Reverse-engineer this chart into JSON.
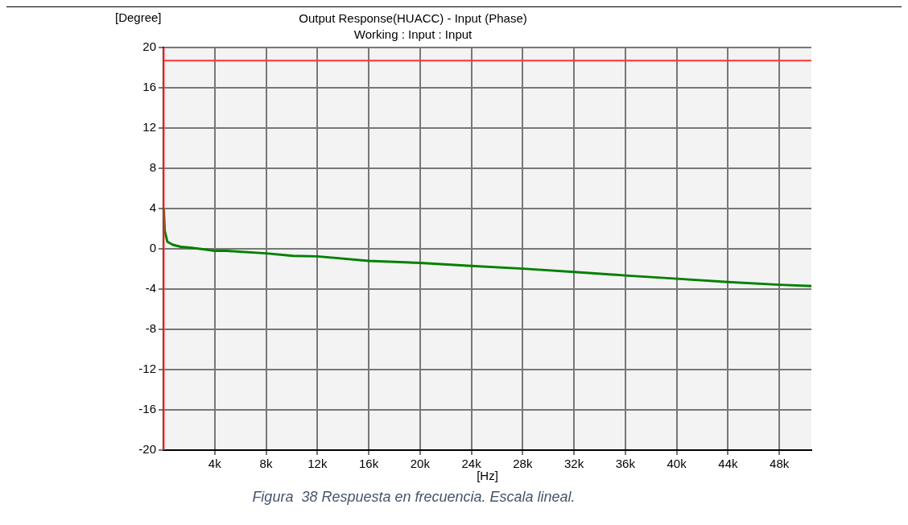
{
  "chart_data": {
    "type": "line",
    "title": "Output Response(HUACC) - Input (Phase)",
    "subtitle": "Working : Input : Input",
    "ylabel": "[Degree]",
    "xlabel": "[Hz]",
    "annotations": [
      "Figura  38 Respuesta en frecuencia. Escala lineal."
    ],
    "series": [
      {
        "color": "#008000",
        "x": [
          30,
          100,
          310,
          730,
          1360,
          2200,
          4000,
          4900,
          8000,
          10100,
          12000,
          16000,
          20000,
          24000,
          28000,
          32000,
          36000,
          40000,
          44000,
          48000,
          50500
        ],
        "values": [
          4,
          1.8,
          0.7,
          0.4,
          0.2,
          0.1,
          -0.2,
          -0.2,
          -0.45,
          -0.7,
          -0.75,
          -1.2,
          -1.4,
          -1.7,
          -1.97,
          -2.3,
          -2.65,
          -2.97,
          -3.3,
          -3.57,
          -3.7
        ]
      }
    ],
    "xlim": [
      0,
      50500
    ],
    "xticks": [
      {
        "value": 4000,
        "label": "4k"
      },
      {
        "value": 8000,
        "label": "8k"
      },
      {
        "value": 12000,
        "label": "12k"
      },
      {
        "value": 16000,
        "label": "16k"
      },
      {
        "value": 20000,
        "label": "20k"
      },
      {
        "value": 24000,
        "label": "24k"
      },
      {
        "value": 28000,
        "label": "28k"
      },
      {
        "value": 32000,
        "label": "32k"
      },
      {
        "value": 36000,
        "label": "36k"
      },
      {
        "value": 40000,
        "label": "40k"
      },
      {
        "value": 44000,
        "label": "44k"
      },
      {
        "value": 48000,
        "label": "48k"
      }
    ],
    "ylim": [
      -20,
      20
    ],
    "yticks": [
      -20,
      -16,
      -12,
      -8,
      -4,
      0,
      4,
      8,
      12,
      16,
      20
    ],
    "ref_lines": [
      {
        "axis": "y",
        "value": 18.7,
        "color": "#ff3333"
      },
      {
        "axis": "x",
        "value": 30,
        "color": "#ff3333"
      }
    ],
    "grid": true,
    "legend": false,
    "marker": "none",
    "line_style": "solid"
  }
}
